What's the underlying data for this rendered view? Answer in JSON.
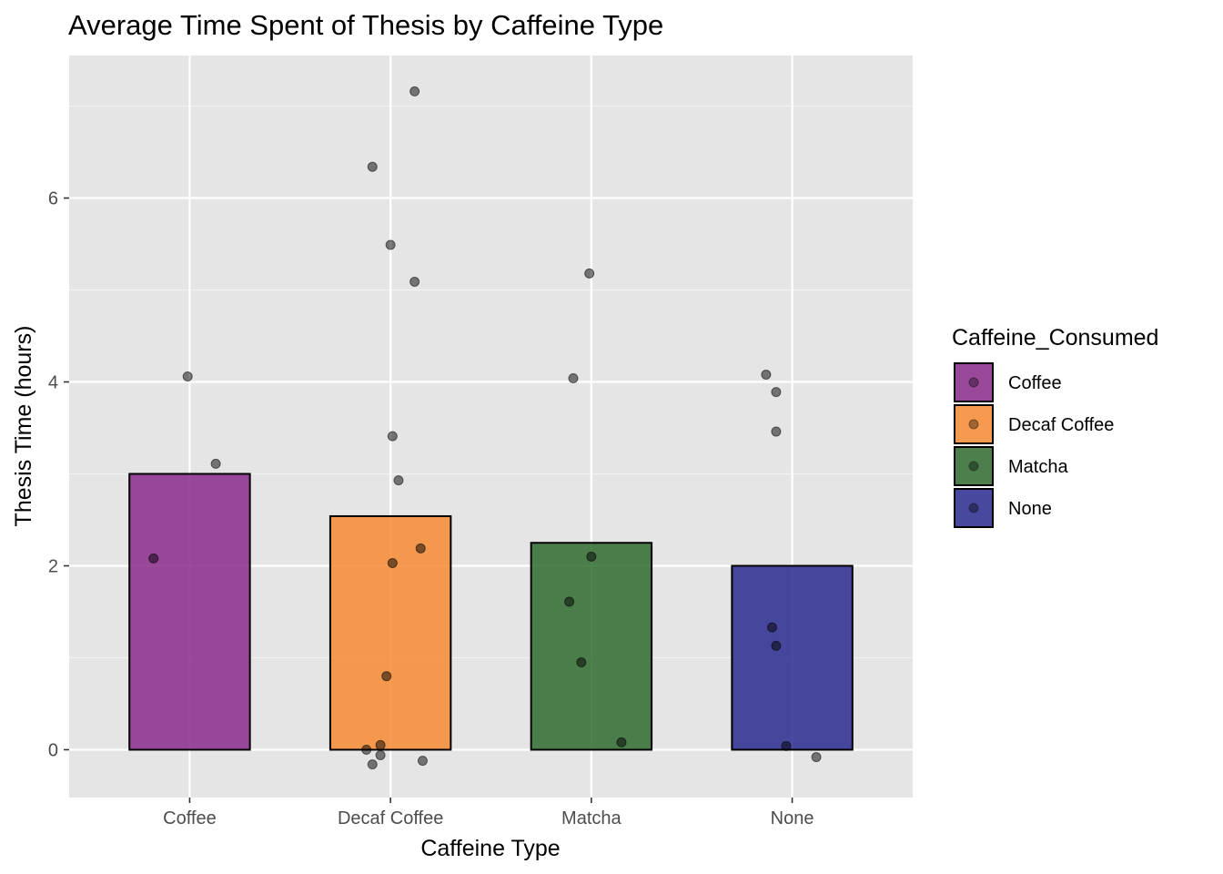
{
  "chart_data": {
    "type": "bar",
    "title": "Average Time Spent of Thesis by Caffeine Type",
    "xlabel": "Caffeine Type",
    "ylabel": "Thesis Time (hours)",
    "ylim": [
      -0.52,
      7.55
    ],
    "yticks": [
      0,
      2,
      4,
      6
    ],
    "grid": true,
    "legend": {
      "title": "Caffeine_Consumed",
      "placement": "right",
      "entries": [
        "Coffee",
        "Decaf Coffee",
        "Matcha",
        "None"
      ]
    },
    "categories": [
      "Coffee",
      "Decaf Coffee",
      "Matcha",
      "None"
    ],
    "values": [
      3.0,
      2.54,
      2.25,
      2.0
    ],
    "colors": [
      "#8b2b8b",
      "#f68b33",
      "#2f6b2f",
      "#2a2a8f"
    ],
    "points": [
      {
        "category": "Coffee",
        "jitter": -0.18,
        "y": 2.08
      },
      {
        "category": "Coffee",
        "jitter": -0.01,
        "y": 4.06
      },
      {
        "category": "Coffee",
        "jitter": 0.13,
        "y": 3.11
      },
      {
        "category": "Decaf Coffee",
        "jitter": 0.12,
        "y": 7.16
      },
      {
        "category": "Decaf Coffee",
        "jitter": -0.09,
        "y": 6.34
      },
      {
        "category": "Decaf Coffee",
        "jitter": 0.0,
        "y": 5.49
      },
      {
        "category": "Decaf Coffee",
        "jitter": 0.12,
        "y": 5.09
      },
      {
        "category": "Decaf Coffee",
        "jitter": 0.01,
        "y": 3.41
      },
      {
        "category": "Decaf Coffee",
        "jitter": 0.04,
        "y": 2.93
      },
      {
        "category": "Decaf Coffee",
        "jitter": 0.15,
        "y": 2.19
      },
      {
        "category": "Decaf Coffee",
        "jitter": 0.01,
        "y": 2.03
      },
      {
        "category": "Decaf Coffee",
        "jitter": -0.02,
        "y": 0.8
      },
      {
        "category": "Decaf Coffee",
        "jitter": -0.05,
        "y": 0.05
      },
      {
        "category": "Decaf Coffee",
        "jitter": -0.12,
        "y": 0.0
      },
      {
        "category": "Decaf Coffee",
        "jitter": -0.05,
        "y": -0.06
      },
      {
        "category": "Decaf Coffee",
        "jitter": 0.16,
        "y": -0.12
      },
      {
        "category": "Decaf Coffee",
        "jitter": -0.09,
        "y": -0.16
      },
      {
        "category": "Matcha",
        "jitter": -0.01,
        "y": 5.18
      },
      {
        "category": "Matcha",
        "jitter": -0.09,
        "y": 4.04
      },
      {
        "category": "Matcha",
        "jitter": 0.0,
        "y": 2.1
      },
      {
        "category": "Matcha",
        "jitter": -0.11,
        "y": 1.61
      },
      {
        "category": "Matcha",
        "jitter": -0.05,
        "y": 0.95
      },
      {
        "category": "Matcha",
        "jitter": 0.15,
        "y": 0.08
      },
      {
        "category": "None",
        "jitter": -0.13,
        "y": 4.08
      },
      {
        "category": "None",
        "jitter": -0.08,
        "y": 3.89
      },
      {
        "category": "None",
        "jitter": -0.08,
        "y": 3.46
      },
      {
        "category": "None",
        "jitter": -0.1,
        "y": 1.33
      },
      {
        "category": "None",
        "jitter": -0.08,
        "y": 1.13
      },
      {
        "category": "None",
        "jitter": -0.03,
        "y": 0.04
      },
      {
        "category": "None",
        "jitter": 0.12,
        "y": -0.08
      }
    ]
  }
}
